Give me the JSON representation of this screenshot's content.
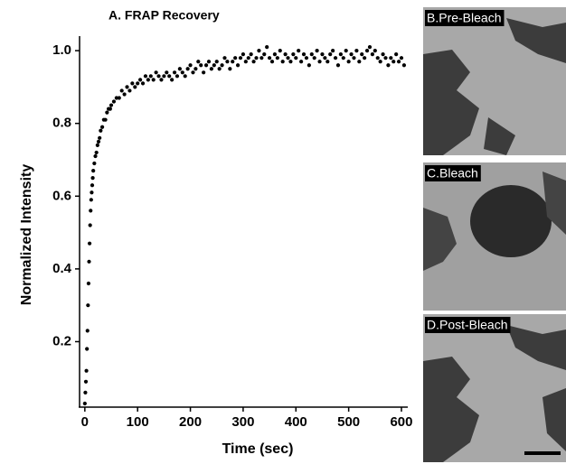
{
  "chart_data": {
    "type": "scatter",
    "title": "A. FRAP Recovery",
    "x_label": "Time (sec)",
    "y_label": "Normalized Intensity",
    "color": "#000000",
    "x": [
      0,
      1,
      2,
      3,
      4,
      5,
      6,
      7,
      8,
      9,
      10,
      11,
      12,
      13,
      14,
      15,
      16,
      18,
      20,
      22,
      24,
      26,
      28,
      30,
      33,
      36,
      39,
      42,
      45,
      48,
      50,
      55,
      60,
      65,
      70,
      75,
      80,
      85,
      90,
      95,
      100,
      105,
      110,
      115,
      120,
      125,
      130,
      135,
      140,
      145,
      150,
      155,
      160,
      165,
      170,
      175,
      180,
      185,
      190,
      195,
      200,
      205,
      210,
      215,
      220,
      225,
      230,
      235,
      240,
      245,
      250,
      255,
      260,
      265,
      270,
      275,
      280,
      285,
      290,
      295,
      300,
      305,
      310,
      315,
      320,
      325,
      330,
      335,
      340,
      345,
      350,
      355,
      360,
      365,
      370,
      375,
      380,
      385,
      390,
      395,
      400,
      405,
      410,
      415,
      420,
      425,
      430,
      435,
      440,
      445,
      450,
      455,
      460,
      465,
      470,
      475,
      480,
      485,
      490,
      495,
      500,
      505,
      510,
      515,
      520,
      525,
      530,
      535,
      540,
      545,
      550,
      555,
      560,
      565,
      570,
      575,
      580,
      585,
      590,
      595,
      600,
      605
    ],
    "values": [
      0.03,
      0.06,
      0.09,
      0.12,
      0.18,
      0.23,
      0.3,
      0.36,
      0.42,
      0.47,
      0.52,
      0.56,
      0.59,
      0.61,
      0.63,
      0.65,
      0.67,
      0.69,
      0.71,
      0.72,
      0.74,
      0.75,
      0.76,
      0.78,
      0.79,
      0.81,
      0.81,
      0.83,
      0.84,
      0.84,
      0.85,
      0.86,
      0.87,
      0.87,
      0.89,
      0.88,
      0.9,
      0.89,
      0.91,
      0.9,
      0.91,
      0.92,
      0.91,
      0.93,
      0.92,
      0.93,
      0.92,
      0.94,
      0.93,
      0.92,
      0.93,
      0.94,
      0.93,
      0.92,
      0.94,
      0.93,
      0.95,
      0.94,
      0.93,
      0.95,
      0.96,
      0.94,
      0.95,
      0.97,
      0.96,
      0.94,
      0.96,
      0.97,
      0.95,
      0.96,
      0.97,
      0.95,
      0.96,
      0.98,
      0.97,
      0.95,
      0.97,
      0.98,
      0.96,
      0.98,
      0.99,
      0.97,
      0.98,
      0.99,
      0.97,
      0.98,
      1.0,
      0.98,
      0.99,
      1.01,
      0.98,
      0.97,
      0.99,
      0.98,
      1.0,
      0.97,
      0.99,
      0.98,
      0.97,
      0.99,
      0.98,
      1.0,
      0.97,
      0.99,
      0.98,
      0.96,
      0.99,
      0.98,
      1.0,
      0.97,
      0.99,
      0.98,
      0.97,
      0.99,
      1.0,
      0.98,
      0.96,
      0.99,
      0.98,
      1.0,
      0.97,
      0.99,
      0.98,
      1.0,
      0.97,
      0.99,
      0.98,
      1.0,
      1.01,
      0.99,
      1.0,
      0.98,
      0.97,
      0.99,
      0.98,
      0.96,
      0.98,
      0.97,
      0.99,
      0.97,
      0.98,
      0.96
    ],
    "xlim": [
      -10,
      612
    ],
    "ylim": [
      0.02,
      1.04
    ],
    "xticks": [
      0,
      100,
      200,
      300,
      400,
      500,
      600
    ],
    "yticks": [
      0.2,
      0.4,
      0.6,
      0.8,
      {
        "value": 1,
        "label": "1.0"
      }
    ]
  },
  "panels": [
    {
      "label": "B.Pre-Bleach"
    },
    {
      "label": "C.Bleach"
    },
    {
      "label": "D.Post-Bleach"
    }
  ]
}
